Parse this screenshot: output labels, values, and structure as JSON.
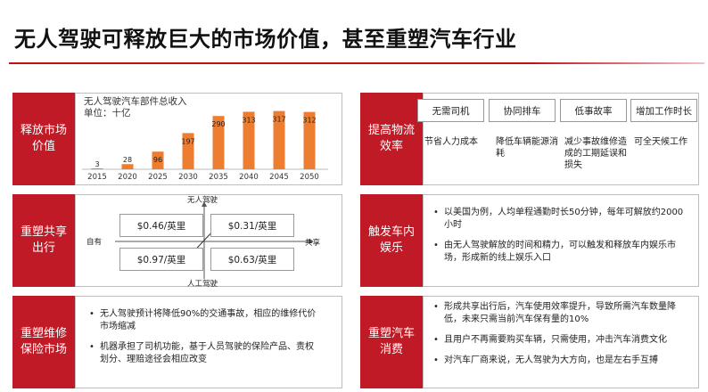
{
  "title": "无人驾驶可释放巨大的市场价值，甚至重塑汽车行业",
  "sections": {
    "s1": "释放市场价值",
    "s2": "重塑共享出行",
    "s3": "重塑维修保险市场",
    "s4": "提高物流效率",
    "s5": "触发车内娱乐",
    "s6": "重塑汽车消费"
  },
  "chart_data": {
    "type": "bar",
    "title": "无人驾驶汽车部件总收入",
    "unit": "单位：十亿",
    "categories": [
      "2015",
      "2020",
      "2025",
      "2030",
      "2035",
      "2040",
      "2045",
      "2050"
    ],
    "values": [
      3,
      28,
      96,
      197,
      290,
      313,
      317,
      312
    ],
    "ylim": [
      0,
      320
    ],
    "color": "#ed7d31",
    "grid": false
  },
  "quadrant": {
    "top_label": "无人驾驶",
    "bottom_label": "人工驾驶",
    "left_label": "自有",
    "right_label": "共享",
    "q_tl": "$0.46/英里",
    "q_tr": "$0.31/英里",
    "q_bl": "$0.97/英里",
    "q_br": "$0.63/英里"
  },
  "insurance_bullets": [
    "无人驾驶预计将降低90%的交通事故，相应的维修代价市场缩减",
    "机器承担了司机功能，基于人员驾驶的保险产品、责权划分、理赔途径会相应改变"
  ],
  "logistics": [
    {
      "label": "无需司机",
      "desc": "节省人力成本"
    },
    {
      "label": "协同排车",
      "desc": "降低车辆能源消耗"
    },
    {
      "label": "低事故率",
      "desc": "减少事故维修造成的工期延误和损失"
    },
    {
      "label": "增加工作时长",
      "desc": "可全天候工作"
    }
  ],
  "entertainment_bullets": [
    "以美国为例，人均单程通勤时长50分钟，每年可解放约2000小时",
    "由无人驾驶解放的时间和精力，可以触发和释放车内娱乐市场，形成新的线上娱乐入口"
  ],
  "consumption_bullets": [
    "形成共享出行后，汽车使用效率提升，导致所需汽车数量降低，未来只需当前汽车保有量的10%",
    "且用户不再需要购买车辆，只需使用，冲击汽车消费文化",
    "对汽车厂商来说，无人驾驶为大方向，也是左右手互搏"
  ]
}
